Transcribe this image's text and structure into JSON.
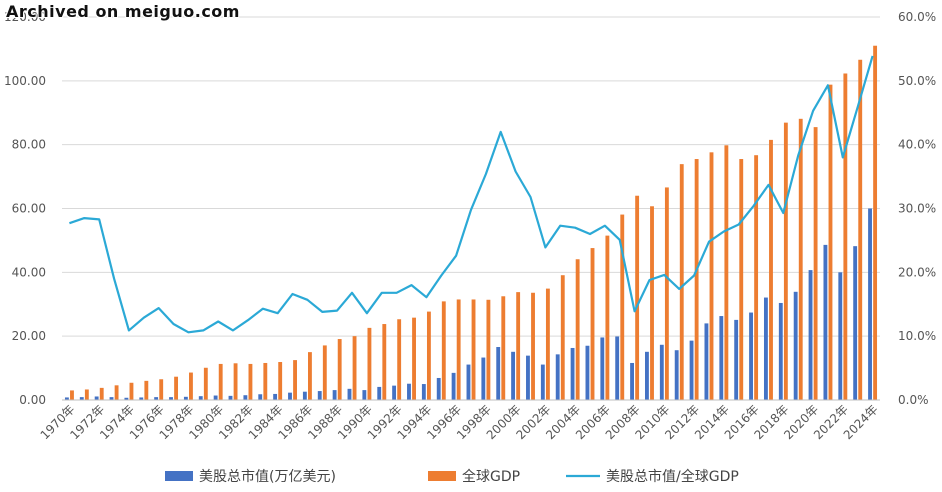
{
  "watermark": "Archived on meiguo.com",
  "chart_data": {
    "type": "bar+line",
    "categories": [
      "1970年",
      "1971年",
      "1972年",
      "1973年",
      "1974年",
      "1975年",
      "1976年",
      "1977年",
      "1978年",
      "1979年",
      "1980年",
      "1981年",
      "1982年",
      "1983年",
      "1984年",
      "1985年",
      "1986年",
      "1987年",
      "1988年",
      "1989年",
      "1990年",
      "1991年",
      "1992年",
      "1993年",
      "1994年",
      "1995年",
      "1996年",
      "1997年",
      "1998年",
      "1999年",
      "2000年",
      "2001年",
      "2002年",
      "2003年",
      "2004年",
      "2005年",
      "2006年",
      "2007年",
      "2008年",
      "2009年",
      "2010年",
      "2011年",
      "2012年",
      "2013年",
      "2014年",
      "2015年",
      "2016年",
      "2017年",
      "2018年",
      "2019年",
      "2020年",
      "2021年",
      "2022年",
      "2023年",
      "2024年"
    ],
    "x_tick_labels": [
      "1970年",
      "1972年",
      "1974年",
      "1976年",
      "1978年",
      "1980年",
      "1982年",
      "1984年",
      "1986年",
      "1988年",
      "1990年",
      "1992年",
      "1994年",
      "1996年",
      "1998年",
      "2000年",
      "2002年",
      "2004年",
      "2006年",
      "2008年",
      "2010年",
      "2012年",
      "2014年",
      "2016年",
      "2018年",
      "2020年",
      "2022年",
      "2024年"
    ],
    "series": [
      {
        "name": "美股总市值(万亿美元)",
        "axis": "left",
        "kind": "bar",
        "color": "#4472C4",
        "values": [
          0.8,
          0.9,
          1.1,
          0.9,
          0.7,
          0.8,
          0.9,
          0.9,
          1.0,
          1.2,
          1.4,
          1.3,
          1.5,
          1.8,
          1.9,
          2.3,
          2.6,
          2.8,
          3.1,
          3.5,
          3.1,
          4.1,
          4.5,
          5.1,
          5.0,
          6.9,
          8.5,
          11.1,
          13.3,
          16.6,
          15.1,
          13.9,
          11.1,
          14.3,
          16.3,
          17.0,
          19.6,
          19.9,
          11.6,
          15.1,
          17.3,
          15.6,
          18.6,
          24.0,
          26.3,
          25.1,
          27.4,
          32.1,
          30.4,
          33.9,
          40.7,
          48.6,
          40.0,
          48.2,
          60.0
        ]
      },
      {
        "name": "全球GDP",
        "axis": "left",
        "kind": "bar",
        "color": "#ED7D31",
        "values": [
          3.0,
          3.3,
          3.8,
          4.6,
          5.4,
          6.0,
          6.5,
          7.3,
          8.6,
          10.1,
          11.3,
          11.5,
          11.3,
          11.6,
          11.9,
          12.5,
          15.0,
          17.1,
          19.1,
          20.0,
          22.6,
          23.8,
          25.3,
          25.8,
          27.7,
          30.9,
          31.5,
          31.5,
          31.4,
          32.5,
          33.8,
          33.6,
          34.9,
          39.1,
          44.1,
          47.6,
          51.5,
          58.1,
          64.0,
          60.7,
          66.6,
          73.9,
          75.5,
          77.6,
          79.8,
          75.5,
          76.7,
          81.5,
          86.9,
          88.1,
          85.5,
          98.8,
          102.3,
          106.6,
          111.0
        ]
      },
      {
        "name": "美股总市值/全球GDP",
        "axis": "right",
        "kind": "line",
        "color": "#2BA9D6",
        "values": [
          27.7,
          28.5,
          28.3,
          19.0,
          10.9,
          12.9,
          14.4,
          11.9,
          10.6,
          10.9,
          12.3,
          10.9,
          12.5,
          14.3,
          13.6,
          16.6,
          15.7,
          13.8,
          14.0,
          16.8,
          13.6,
          16.8,
          16.8,
          18.0,
          16.1,
          19.5,
          22.6,
          29.8,
          35.4,
          42.0,
          35.8,
          31.8,
          23.9,
          27.3,
          27.0,
          26.0,
          27.3,
          25.1,
          13.9,
          18.8,
          19.6,
          17.4,
          19.5,
          24.8,
          26.4,
          27.5,
          30.4,
          33.7,
          29.3,
          38.3,
          45.3,
          49.3,
          38.0,
          45.9,
          53.9
        ]
      }
    ],
    "left_axis": {
      "min": 0,
      "max": 120,
      "ticks": [
        "0.00",
        "20.00",
        "40.00",
        "60.00",
        "80.00",
        "100.00",
        "120.00"
      ]
    },
    "right_axis": {
      "min": 0,
      "max": 60,
      "ticks": [
        "0.0%",
        "10.0%",
        "20.0%",
        "30.0%",
        "40.0%",
        "50.0%",
        "60.0%"
      ]
    },
    "grid": true,
    "legend_position": "bottom",
    "title": "",
    "xlabel": "",
    "ylabel": ""
  },
  "legend": {
    "item1": "美股总市值(万亿美元)",
    "item2": "全球GDP",
    "item3": "美股总市值/全球GDP"
  }
}
